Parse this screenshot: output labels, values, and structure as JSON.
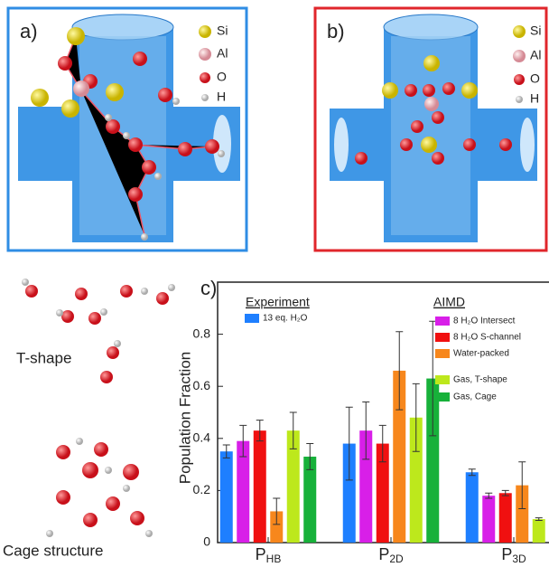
{
  "panels": {
    "a": {
      "label": "a)",
      "legend": [
        "Si",
        "Al",
        "O",
        "H"
      ]
    },
    "b": {
      "label": "b)",
      "legend": [
        "Si",
        "Al",
        "O",
        "H"
      ]
    },
    "c": {
      "label": "c)"
    }
  },
  "structures": [
    "T-shape",
    "Cage structure"
  ],
  "chart_data": {
    "type": "bar",
    "y_label": "Population Fraction",
    "categories": [
      "PHB",
      "P2D",
      "P3D"
    ],
    "legend_groups": [
      "Experiment",
      "AIMD"
    ],
    "ylim": [
      0,
      1.0
    ],
    "yticks": [
      0,
      0.2,
      0.4,
      0.6,
      0.8
    ],
    "series": [
      {
        "name": "13 eq. H₂O",
        "color": "#1e7fff",
        "values": [
          0.35,
          0.38,
          0.27
        ],
        "errors": [
          0.025,
          0.14,
          0.012
        ]
      },
      {
        "name": "8 H₂O Intersect",
        "color": "#d81fe8",
        "values": [
          0.39,
          0.43,
          0.18
        ],
        "errors": [
          0.06,
          0.11,
          0.01
        ]
      },
      {
        "name": "8 H₂O S-channel",
        "color": "#f01010",
        "values": [
          0.43,
          0.38,
          0.19
        ],
        "errors": [
          0.04,
          0.07,
          0.01
        ]
      },
      {
        "name": "Water-packed",
        "color": "#f7871c",
        "values": [
          0.12,
          0.66,
          0.22
        ],
        "errors": [
          0.05,
          0.15,
          0.09
        ]
      },
      {
        "name": "Gas, T-shape",
        "color": "#bde81c",
        "values": [
          0.43,
          0.48,
          0.09
        ],
        "errors": [
          0.07,
          0.13,
          0.005
        ]
      },
      {
        "name": "Gas, Cage",
        "color": "#17b13a",
        "values": [
          0.33,
          0.63,
          0.04
        ],
        "errors": [
          0.05,
          0.22,
          0.003
        ]
      }
    ]
  }
}
